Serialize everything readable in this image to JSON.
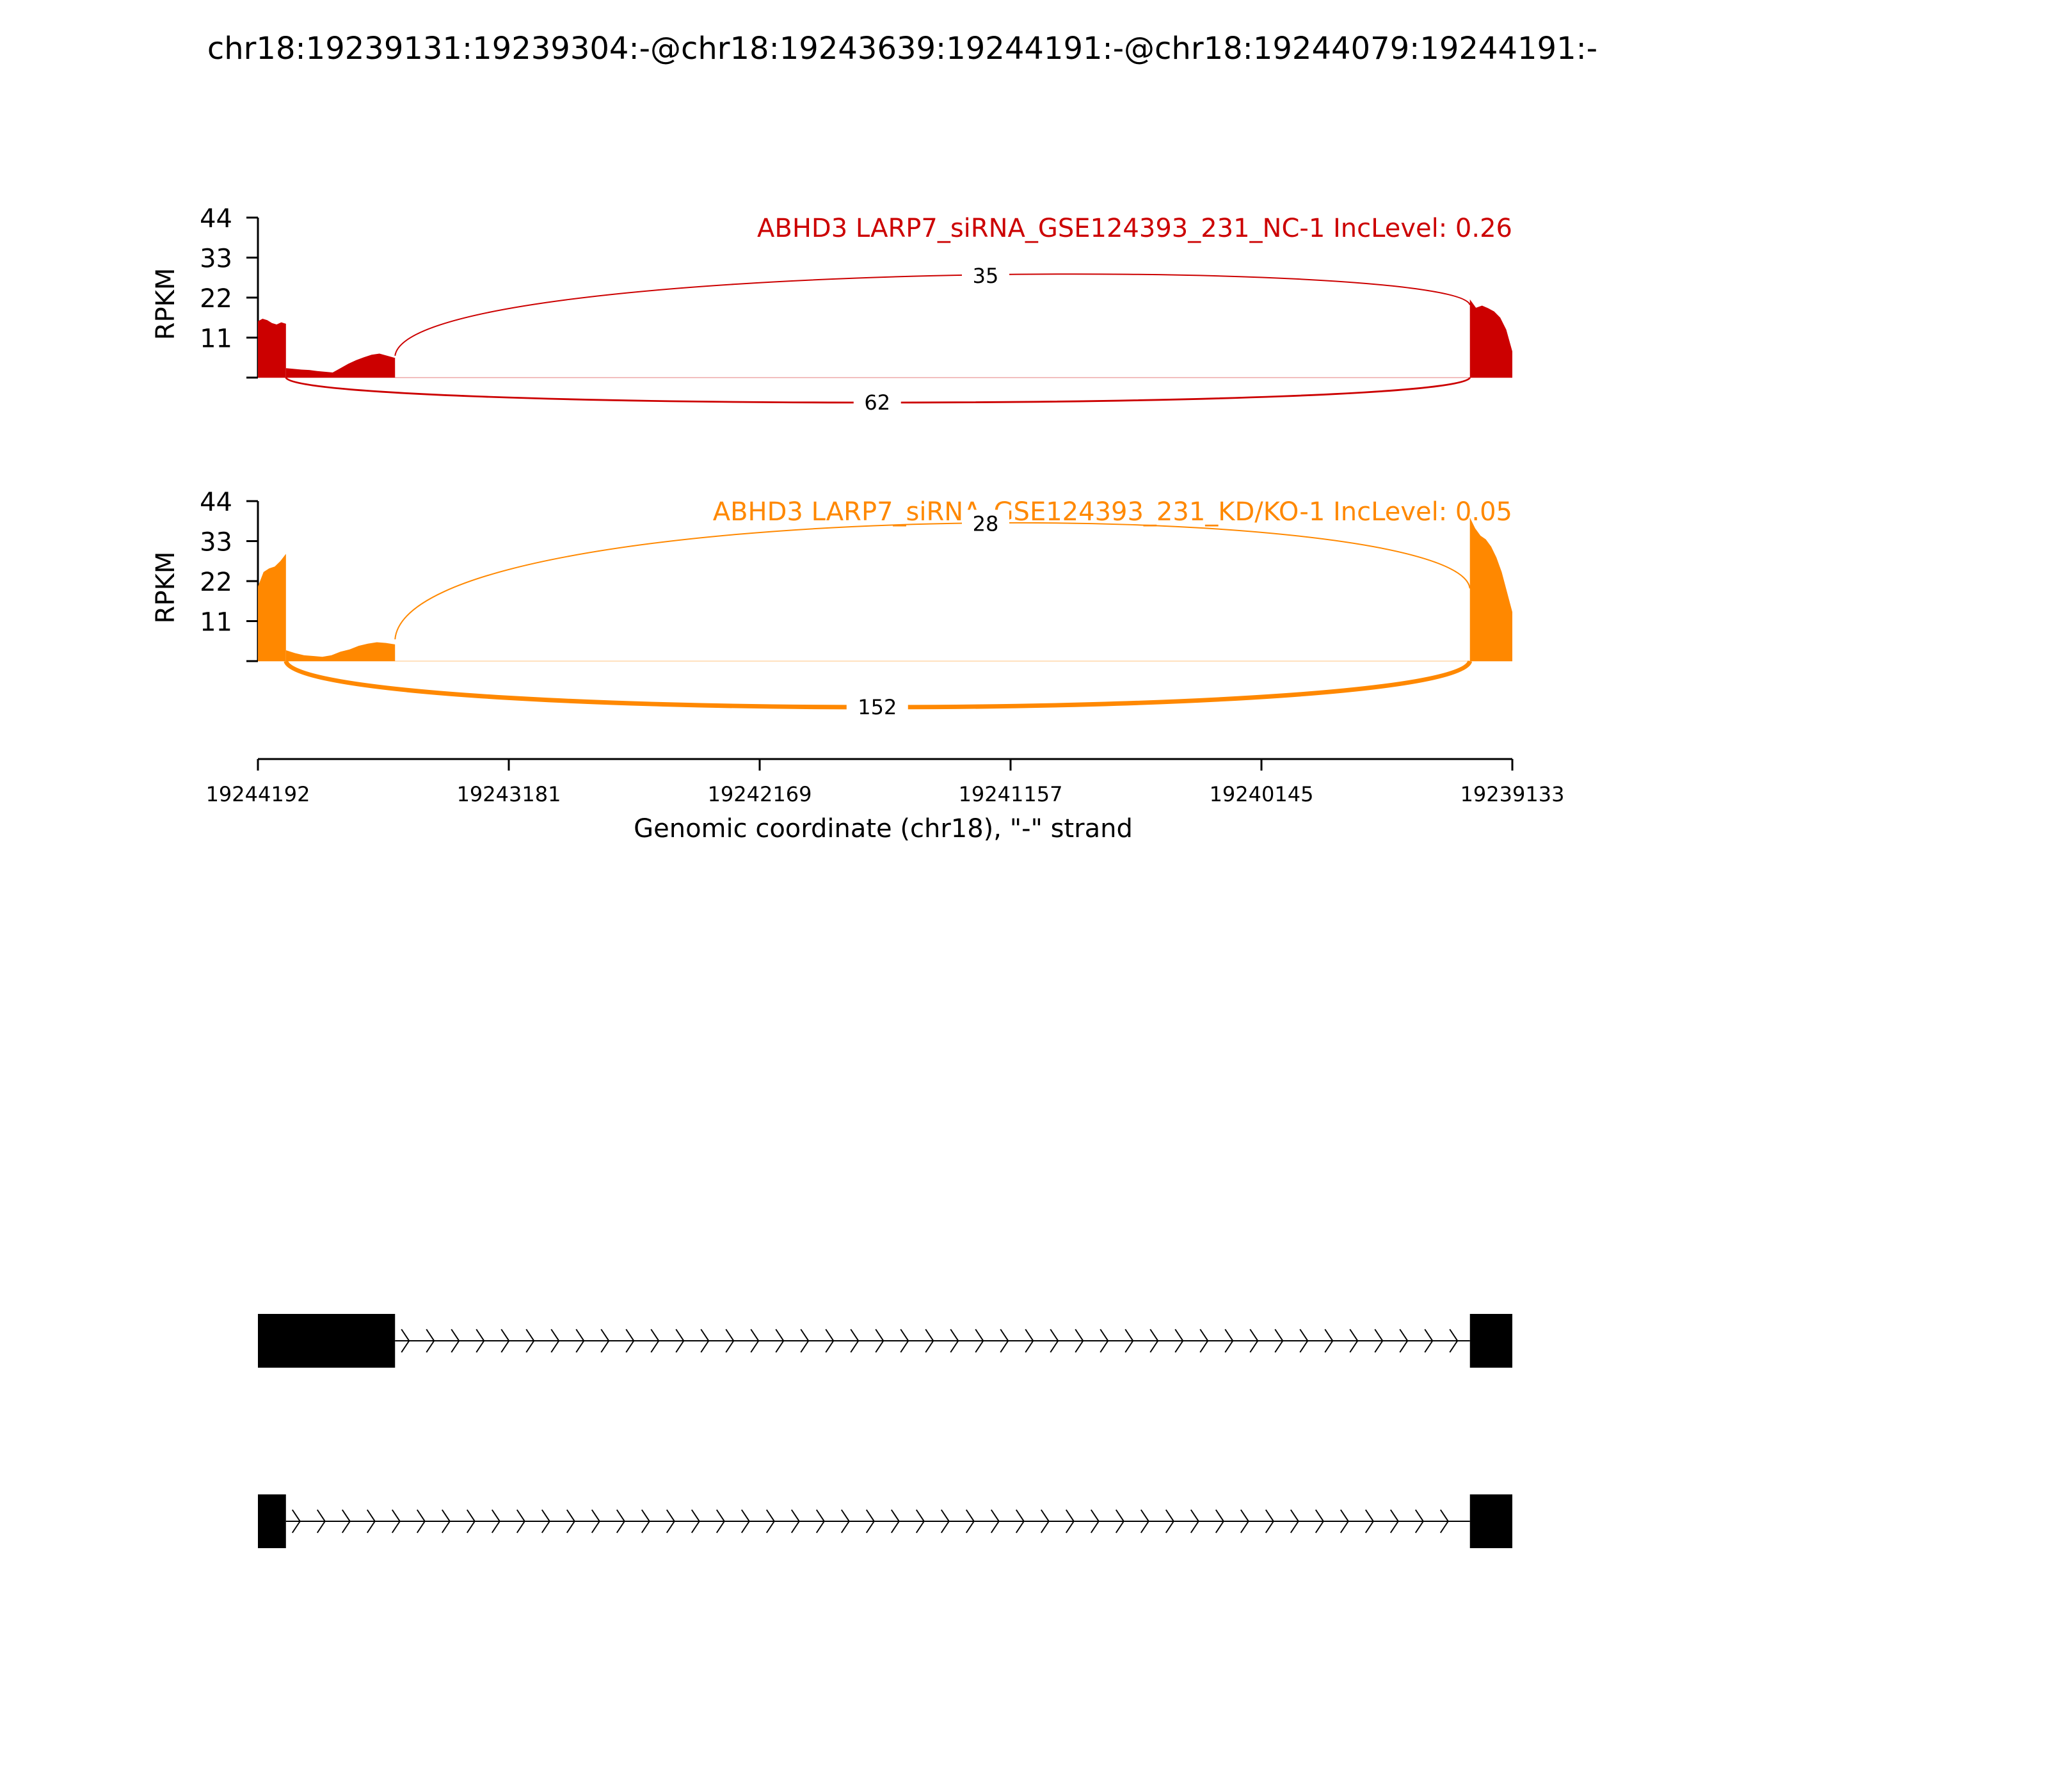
{
  "chart_data": {
    "type": "area",
    "title": "chr18:19239131:19239304:-@chr18:19243639:19244191:-@chr18:19244079:19244191:-",
    "xlabel": "Genomic coordinate (chr18), \"-\" strand",
    "ylabel": "RPKM",
    "x_ticks": [
      "19244192",
      "19243181",
      "19242169",
      "19241157",
      "19240145",
      "19239133"
    ],
    "xlim": [
      19244192,
      19239133
    ],
    "ylim": [
      0,
      44
    ],
    "y_ticks": [
      "11",
      "22",
      "33",
      "44"
    ],
    "exons": [
      {
        "start": 19244192,
        "end": 19244079
      },
      {
        "start": 19244079,
        "end": 19243639
      },
      {
        "start": 19239304,
        "end": 19239133
      }
    ],
    "tracks": [
      {
        "label": "ABHD3 LARP7_siRNA_GSE124393_231_NC-1 IncLevel: 0.26",
        "color": "#cc0000",
        "coverage": [
          {
            "start": 19244192,
            "end": 19244079,
            "values": [
              15.5,
              16.2,
              15.8,
              15.0,
              14.6,
              15.2,
              14.8
            ]
          },
          {
            "start": 19244079,
            "end": 19243639,
            "values": [
              2.6,
              2.4,
              2.2,
              2.1,
              1.8,
              1.6,
              1.4,
              2.6,
              3.8,
              4.8,
              5.6,
              6.3,
              6.6,
              6.0,
              5.4
            ]
          },
          {
            "start": 19239304,
            "end": 19239133,
            "values": [
              21.5,
              19.2,
              19.8,
              19.1,
              18.2,
              16.5,
              13.2,
              7.2
            ]
          }
        ],
        "junctions": [
          {
            "count": "35",
            "from": 19243639,
            "to": 19239304,
            "side": "above"
          },
          {
            "count": "62",
            "from": 19244079,
            "to": 19239304,
            "side": "below"
          }
        ]
      },
      {
        "label": "ABHD3 LARP7_siRNA_GSE124393_231_KD/KO-1 IncLevel: 0.05",
        "color": "#ff8800",
        "coverage": [
          {
            "start": 19244192,
            "end": 19244079,
            "values": [
              20.5,
              24.5,
              25.5,
              26.0,
              27.5,
              29.5
            ]
          },
          {
            "start": 19244079,
            "end": 19243639,
            "values": [
              3.0,
              2.2,
              1.6,
              1.4,
              1.2,
              1.6,
              2.6,
              3.2,
              4.2,
              4.8,
              5.2,
              5.0,
              4.6
            ]
          },
          {
            "start": 19239304,
            "end": 19239133,
            "values": [
              39.5,
              36.5,
              34.5,
              33.5,
              31.5,
              28.5,
              24.5,
              19.0,
              13.5
            ]
          }
        ],
        "junctions": [
          {
            "count": "28",
            "from": 19243639,
            "to": 19239304,
            "side": "above"
          },
          {
            "count": "152",
            "from": 19244079,
            "to": 19239304,
            "side": "below"
          }
        ]
      }
    ],
    "isoforms": [
      {
        "exons": [
          {
            "start": 19244192,
            "end": 19243639
          },
          {
            "start": 19239304,
            "end": 19239133
          }
        ]
      },
      {
        "exons": [
          {
            "start": 19244192,
            "end": 19244079
          },
          {
            "start": 19239304,
            "end": 19239133
          }
        ]
      }
    ]
  }
}
